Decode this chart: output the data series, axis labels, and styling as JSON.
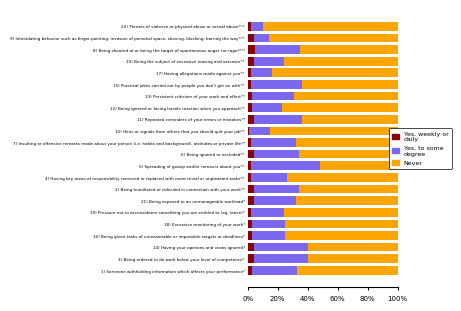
{
  "categories": [
    "22) Threats of violence or physical abuse or actual abuse***",
    "9) Intimidating behavior such as finger-pointing, invasion of personal space, shoving, blocking, barring the way***",
    "8) Being shouted at or being the target of spontaneous anger (or rage)***",
    "20) Being the subject of excessive teasing and sarcasm**",
    "17) Having allegations made against you**",
    "15) Practical jokes carried out by people you don't get on with**",
    "13) Persistent criticism of your work and effort**",
    "12) Being ignored or facing hostile reaction when you approach**",
    "11) Repeated reminders of your errors or mistakes**",
    "10) Hints or signals from others that you should quit your job**",
    "7) Insulting or offensive remarks made about your person (i.e. habits and background), attitudes or private life**",
    "6) Being ignored or excluded**",
    "5) Spreading of gossip and/or rumours about you**",
    "4) Having key areas of responsibility removed or replaced with more trivial or unpleasant tasks**",
    "2) Being humiliated or ridiculed in connection with your work**",
    "21) Being exposed to an unmanageable workload*",
    "19) Pressure not to acconsideem something you are entitled to (eg. leave)*",
    "18) Excessive monitoring of your work*",
    "16) Being given tasks of unreasonable or impossible targets or deadlines*",
    "14) Having your opinions and views ignored*",
    "3) Being ordered to do work below your level of competence*",
    "1) Someone withholding information which affects your performance*"
  ],
  "yes_weekly_daily": [
    2,
    4,
    5,
    4,
    2,
    2,
    3,
    3,
    4,
    1,
    2,
    4,
    2,
    2,
    4,
    4,
    2,
    3,
    3,
    4,
    4,
    3
  ],
  "yes_some_degree": [
    8,
    10,
    30,
    20,
    14,
    34,
    28,
    20,
    32,
    14,
    30,
    30,
    46,
    24,
    30,
    28,
    22,
    22,
    22,
    36,
    36,
    30
  ],
  "never": [
    90,
    86,
    65,
    76,
    84,
    64,
    69,
    77,
    64,
    85,
    68,
    66,
    52,
    74,
    66,
    68,
    76,
    75,
    75,
    60,
    60,
    67
  ],
  "colors": {
    "yes_weekly_daily": "#8B0000",
    "yes_some_degree": "#7B68EE",
    "never": "#FFA500"
  },
  "legend_labels": [
    "Yes, weekly or\ndaily",
    "Yes, to some\ndegree",
    "Never"
  ],
  "xlabel_ticks": [
    "0%",
    "20%",
    "40%",
    "60%",
    "80%",
    "100%"
  ],
  "xlabel_vals": [
    0,
    20,
    40,
    60,
    80,
    100
  ]
}
